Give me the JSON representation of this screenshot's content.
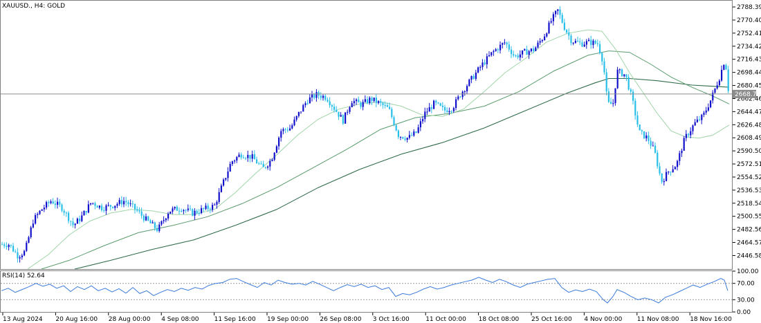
{
  "chart_data": {
    "type": "candlestick",
    "symbol_label": "XAUUSD., H4:  GOLD",
    "price_axis": {
      "range": [
        2428.0,
        2797.0
      ],
      "ticks": [
        "2788.39",
        "2770.40",
        "2752.41",
        "2734.42",
        "2716.43",
        "2698.44",
        "2680.45",
        "2662.46",
        "2644.47",
        "2626.48",
        "2608.49",
        "2590.50",
        "2572.51",
        "2554.52",
        "2536.53",
        "2518.54",
        "2500.55",
        "2482.56",
        "2464.57",
        "2446.58"
      ]
    },
    "current_price": {
      "value": 2668.72,
      "label": "2668.72"
    },
    "time_labels": [
      "13 Aug 2024",
      "20 Aug 16:00",
      "28 Aug 00:00",
      "4 Sep 08:00",
      "11 Sep 16:00",
      "19 Sep 00:00",
      "26 Sep 08:00",
      "3 Oct 16:00",
      "11 Oct 00:00",
      "18 Oct 08:00",
      "25 Oct 16:00",
      "4 Nov 00:00",
      "11 Nov 08:00",
      "18 Nov 16:00"
    ],
    "close_path": [
      [
        13.0,
        2462
      ],
      [
        26.0,
        2446
      ],
      [
        36.0,
        2452
      ],
      [
        48.0,
        2495
      ],
      [
        60.0,
        2510
      ],
      [
        74.0,
        2522
      ],
      [
        90.0,
        2512
      ],
      [
        106.0,
        2488
      ],
      [
        118.0,
        2500
      ],
      [
        132.0,
        2520
      ],
      [
        148.0,
        2512
      ],
      [
        164.0,
        2516
      ],
      [
        180.0,
        2522
      ],
      [
        196.0,
        2510
      ],
      [
        212.0,
        2495
      ],
      [
        228.0,
        2482
      ],
      [
        244.0,
        2508
      ],
      [
        262.0,
        2512
      ],
      [
        278.0,
        2505
      ],
      [
        294.0,
        2510
      ],
      [
        310.0,
        2515
      ],
      [
        320.0,
        2540
      ],
      [
        334.0,
        2575
      ],
      [
        348.0,
        2586
      ],
      [
        364.0,
        2582
      ],
      [
        380.0,
        2566
      ],
      [
        392.0,
        2578
      ],
      [
        406.0,
        2618
      ],
      [
        420.0,
        2622
      ],
      [
        432.0,
        2642
      ],
      [
        444.0,
        2660
      ],
      [
        458.0,
        2668
      ],
      [
        472.0,
        2664
      ],
      [
        484.0,
        2648
      ],
      [
        496.0,
        2632
      ],
      [
        508.0,
        2660
      ],
      [
        522.0,
        2654
      ],
      [
        536.0,
        2662
      ],
      [
        548.0,
        2656
      ],
      [
        562.0,
        2648
      ],
      [
        576.0,
        2612
      ],
      [
        590.0,
        2608
      ],
      [
        602.0,
        2616
      ],
      [
        614.0,
        2642
      ],
      [
        628.0,
        2656
      ],
      [
        642.0,
        2646
      ],
      [
        654.0,
        2650
      ],
      [
        668.0,
        2672
      ],
      [
        682.0,
        2690
      ],
      [
        696.0,
        2708
      ],
      [
        712.0,
        2726
      ],
      [
        730.0,
        2740
      ],
      [
        744.0,
        2720
      ],
      [
        758.0,
        2726
      ],
      [
        772.0,
        2730
      ],
      [
        786.0,
        2748
      ],
      [
        796.0,
        2768
      ],
      [
        806.0,
        2784
      ],
      [
        816.0,
        2760
      ],
      [
        826.0,
        2742
      ],
      [
        840.0,
        2738
      ],
      [
        852.0,
        2740
      ],
      [
        864.0,
        2738
      ],
      [
        872.0,
        2712
      ],
      [
        878.0,
        2655
      ],
      [
        886.0,
        2655
      ],
      [
        892.0,
        2700
      ],
      [
        904.0,
        2695
      ],
      [
        914.0,
        2660
      ],
      [
        924.0,
        2616
      ],
      [
        936.0,
        2608
      ],
      [
        946.0,
        2590
      ],
      [
        956.0,
        2548
      ],
      [
        966.0,
        2562
      ],
      [
        978.0,
        2572
      ],
      [
        990.0,
        2608
      ],
      [
        1004.0,
        2628
      ],
      [
        1016.0,
        2638
      ],
      [
        1028.0,
        2662
      ],
      [
        1040.0,
        2692
      ],
      [
        1048.0,
        2718
      ],
      [
        1053.0,
        2672
      ]
    ],
    "ma_fast_path": [
      [
        40.0,
        2428
      ],
      [
        70.0,
        2448
      ],
      [
        100.0,
        2475
      ],
      [
        130.0,
        2494
      ],
      [
        160.0,
        2505
      ],
      [
        190.0,
        2510
      ],
      [
        220.0,
        2508
      ],
      [
        250.0,
        2503
      ],
      [
        280.0,
        2503
      ],
      [
        310.0,
        2510
      ],
      [
        340.0,
        2533
      ],
      [
        370.0,
        2560
      ],
      [
        400.0,
        2585
      ],
      [
        430.0,
        2612
      ],
      [
        460.0,
        2634
      ],
      [
        490.0,
        2648
      ],
      [
        520.0,
        2655
      ],
      [
        550.0,
        2658
      ],
      [
        580.0,
        2652
      ],
      [
        610.0,
        2640
      ],
      [
        640.0,
        2638
      ],
      [
        670.0,
        2648
      ],
      [
        700.0,
        2672
      ],
      [
        730.0,
        2698
      ],
      [
        760.0,
        2718
      ],
      [
        790.0,
        2740
      ],
      [
        820.0,
        2752
      ],
      [
        850.0,
        2757
      ],
      [
        870.0,
        2755
      ],
      [
        890.0,
        2730
      ],
      [
        910.0,
        2698
      ],
      [
        930.0,
        2670
      ],
      [
        950.0,
        2642
      ],
      [
        970.0,
        2618
      ],
      [
        990.0,
        2610
      ],
      [
        1010.0,
        2608
      ],
      [
        1030.0,
        2612
      ],
      [
        1054.0,
        2626
      ]
    ],
    "ma_mid_path": [
      [
        60.0,
        2428
      ],
      [
        100.0,
        2440
      ],
      [
        150.0,
        2460
      ],
      [
        200.0,
        2478
      ],
      [
        250.0,
        2488
      ],
      [
        300.0,
        2500
      ],
      [
        350.0,
        2518
      ],
      [
        400.0,
        2540
      ],
      [
        450.0,
        2566
      ],
      [
        500.0,
        2592
      ],
      [
        550.0,
        2620
      ],
      [
        600.0,
        2636
      ],
      [
        650.0,
        2642
      ],
      [
        700.0,
        2652
      ],
      [
        750.0,
        2672
      ],
      [
        800.0,
        2700
      ],
      [
        850.0,
        2722
      ],
      [
        880.0,
        2728
      ],
      [
        910.0,
        2726
      ],
      [
        940.0,
        2710
      ],
      [
        970.0,
        2692
      ],
      [
        1000.0,
        2678
      ],
      [
        1030.0,
        2666
      ],
      [
        1054.0,
        2655
      ]
    ],
    "ma_slow_path": [
      [
        108.0,
        2428
      ],
      [
        160.0,
        2440
      ],
      [
        220.0,
        2455
      ],
      [
        280.0,
        2468
      ],
      [
        340.0,
        2488
      ],
      [
        400.0,
        2510
      ],
      [
        460.0,
        2540
      ],
      [
        520.0,
        2565
      ],
      [
        580.0,
        2586
      ],
      [
        640.0,
        2602
      ],
      [
        700.0,
        2622
      ],
      [
        760.0,
        2646
      ],
      [
        820.0,
        2670
      ],
      [
        860.0,
        2684
      ],
      [
        880.0,
        2690
      ],
      [
        910.0,
        2690
      ],
      [
        950.0,
        2687
      ],
      [
        1000.0,
        2681
      ],
      [
        1054.0,
        2678
      ]
    ],
    "rsi": {
      "label": "RSI(14) 52.64",
      "ticks": [
        "100.00",
        "70.00",
        "30.00",
        "0.00"
      ],
      "levels": [
        30,
        70
      ],
      "path": [
        [
          2.0,
          52
        ],
        [
          12.0,
          58
        ],
        [
          22.0,
          48
        ],
        [
          32.0,
          55
        ],
        [
          42.0,
          62
        ],
        [
          52.0,
          70
        ],
        [
          62.0,
          63
        ],
        [
          72.0,
          68
        ],
        [
          82.0,
          58
        ],
        [
          92.0,
          64
        ],
        [
          102.0,
          50
        ],
        [
          112.0,
          62
        ],
        [
          122.0,
          55
        ],
        [
          132.0,
          64
        ],
        [
          142.0,
          52
        ],
        [
          152.0,
          58
        ],
        [
          162.0,
          49
        ],
        [
          172.0,
          57
        ],
        [
          182.0,
          46
        ],
        [
          192.0,
          60
        ],
        [
          202.0,
          45
        ],
        [
          212.0,
          52
        ],
        [
          222.0,
          40
        ],
        [
          232.0,
          48
        ],
        [
          242.0,
          55
        ],
        [
          252.0,
          50
        ],
        [
          262.0,
          58
        ],
        [
          272.0,
          53
        ],
        [
          282.0,
          60
        ],
        [
          292.0,
          56
        ],
        [
          302.0,
          65
        ],
        [
          312.0,
          70
        ],
        [
          322.0,
          72
        ],
        [
          332.0,
          80
        ],
        [
          342.0,
          82
        ],
        [
          352.0,
          74
        ],
        [
          362.0,
          67
        ],
        [
          372.0,
          60
        ],
        [
          382.0,
          72
        ],
        [
          392.0,
          66
        ],
        [
          402.0,
          78
        ],
        [
          412.0,
          72
        ],
        [
          422.0,
          68
        ],
        [
          432.0,
          70
        ],
        [
          442.0,
          66
        ],
        [
          452.0,
          75
        ],
        [
          462.0,
          68
        ],
        [
          472.0,
          60
        ],
        [
          482.0,
          52
        ],
        [
          492.0,
          60
        ],
        [
          502.0,
          67
        ],
        [
          512.0,
          62
        ],
        [
          522.0,
          68
        ],
        [
          532.0,
          60
        ],
        [
          542.0,
          64
        ],
        [
          552.0,
          55
        ],
        [
          562.0,
          60
        ],
        [
          572.0,
          38
        ],
        [
          582.0,
          45
        ],
        [
          592.0,
          42
        ],
        [
          602.0,
          48
        ],
        [
          612.0,
          56
        ],
        [
          622.0,
          62
        ],
        [
          632.0,
          56
        ],
        [
          642.0,
          60
        ],
        [
          652.0,
          66
        ],
        [
          662.0,
          70
        ],
        [
          672.0,
          74
        ],
        [
          682.0,
          78
        ],
        [
          692.0,
          85
        ],
        [
          702.0,
          78
        ],
        [
          712.0,
          72
        ],
        [
          722.0,
          80
        ],
        [
          732.0,
          74
        ],
        [
          742.0,
          66
        ],
        [
          752.0,
          60
        ],
        [
          762.0,
          68
        ],
        [
          772.0,
          72
        ],
        [
          782.0,
          76
        ],
        [
          792.0,
          80
        ],
        [
          802.0,
          82
        ],
        [
          812.0,
          60
        ],
        [
          822.0,
          48
        ],
        [
          832.0,
          54
        ],
        [
          842.0,
          50
        ],
        [
          852.0,
          56
        ],
        [
          862.0,
          50
        ],
        [
          872.0,
          30
        ],
        [
          878.0,
          22
        ],
        [
          886.0,
          38
        ],
        [
          892.0,
          55
        ],
        [
          902.0,
          48
        ],
        [
          912.0,
          38
        ],
        [
          922.0,
          30
        ],
        [
          932.0,
          34
        ],
        [
          942.0,
          30
        ],
        [
          952.0,
          22
        ],
        [
          962.0,
          36
        ],
        [
          972.0,
          42
        ],
        [
          982.0,
          50
        ],
        [
          992.0,
          58
        ],
        [
          1002.0,
          66
        ],
        [
          1012.0,
          60
        ],
        [
          1022.0,
          68
        ],
        [
          1032.0,
          74
        ],
        [
          1042.0,
          82
        ],
        [
          1047.0,
          78
        ],
        [
          1052.0,
          52
        ]
      ]
    }
  }
}
